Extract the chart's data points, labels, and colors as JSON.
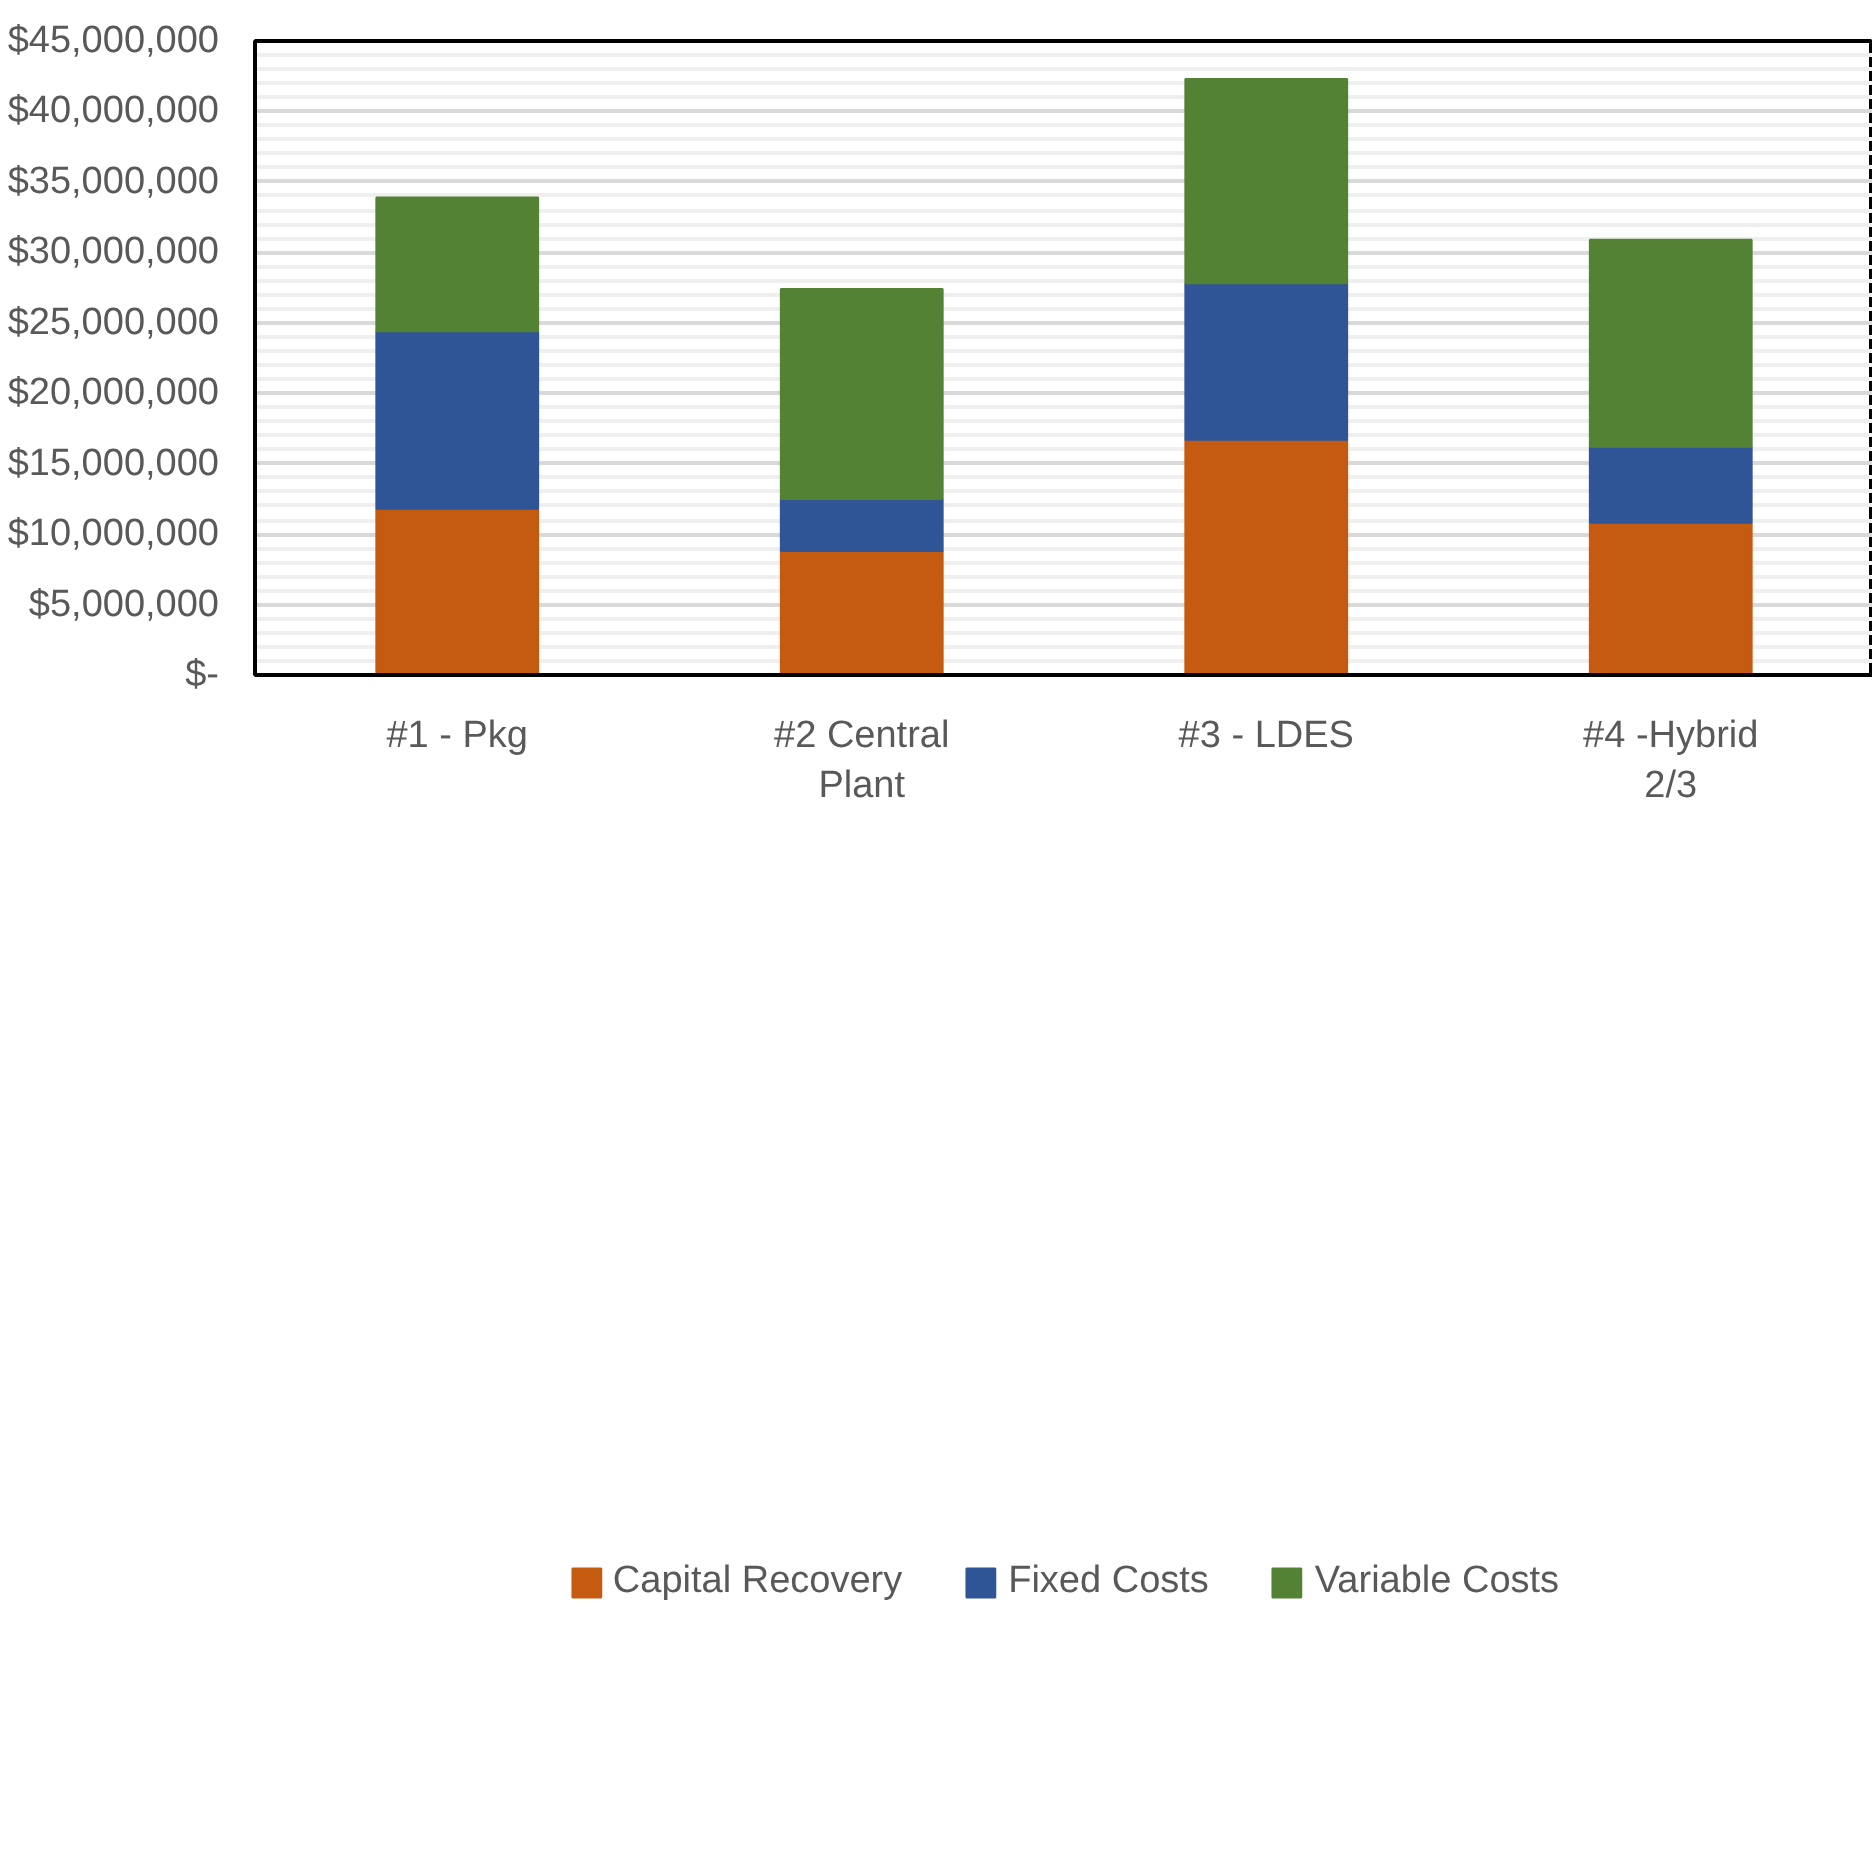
{
  "chart_data": {
    "type": "bar",
    "stacked": true,
    "categories": [
      "#1 - Pkg",
      "#2 Central Plant",
      "#3 - LDES",
      "#4 -Hybrid 2/3"
    ],
    "series": [
      {
        "name": "Capital Recovery",
        "color": "#c55a11",
        "values": [
          11800000,
          8800000,
          16700000,
          10800000
        ]
      },
      {
        "name": "Fixed Costs",
        "color": "#2f5597",
        "values": [
          12600000,
          3700000,
          11100000,
          5400000
        ]
      },
      {
        "name": "Variable Costs",
        "color": "#548235",
        "values": [
          9500000,
          14900000,
          14500000,
          14700000
        ]
      }
    ],
    "ylim": [
      0,
      45000000
    ],
    "yticks": [
      {
        "value": 0,
        "label": "$-"
      },
      {
        "value": 5000000,
        "label": "$5,000,000"
      },
      {
        "value": 10000000,
        "label": "$10,000,000"
      },
      {
        "value": 15000000,
        "label": "$15,000,000"
      },
      {
        "value": 20000000,
        "label": "$20,000,000"
      },
      {
        "value": 25000000,
        "label": "$25,000,000"
      },
      {
        "value": 30000000,
        "label": "$30,000,000"
      },
      {
        "value": 35000000,
        "label": "$35,000,000"
      },
      {
        "value": 40000000,
        "label": "$40,000,000"
      },
      {
        "value": 45000000,
        "label": "$45,000,000"
      }
    ],
    "grid": "y",
    "legend": "bottom"
  }
}
